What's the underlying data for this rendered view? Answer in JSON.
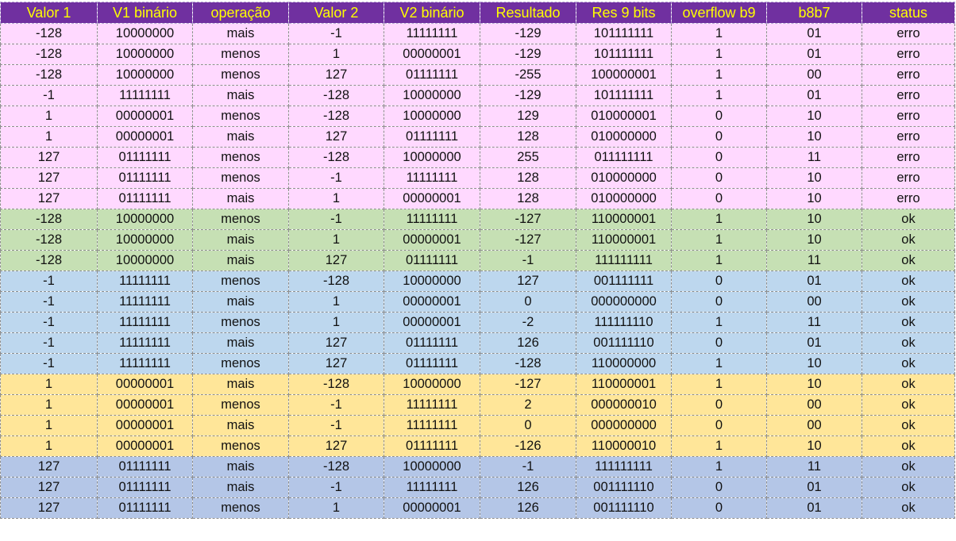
{
  "colors": {
    "header_bg": "#7030A0",
    "header_text": "#FFFF00",
    "group_error_pink": "#FFD9FF",
    "group_ok_minus128_green": "#C6E0B4",
    "group_ok_minus1_blue": "#BDD7EE",
    "group_ok_1_yellow": "#FFE699",
    "group_ok_127_periwinkle": "#B4C6E7"
  },
  "table": {
    "columns": [
      "Valor 1",
      "V1 binário",
      "operação",
      "Valor 2",
      "V2 binário",
      "Resultado",
      "Res 9 bits",
      "overflow b9",
      "b8b7",
      "status"
    ],
    "rows": [
      {
        "group": "pink",
        "cells": [
          "-128",
          "10000000",
          "mais",
          "-1",
          "11111111",
          "-129",
          "101111111",
          "1",
          "01",
          "erro"
        ]
      },
      {
        "group": "pink",
        "cells": [
          "-128",
          "10000000",
          "menos",
          "1",
          "00000001",
          "-129",
          "101111111",
          "1",
          "01",
          "erro"
        ]
      },
      {
        "group": "pink",
        "cells": [
          "-128",
          "10000000",
          "menos",
          "127",
          "01111111",
          "-255",
          "100000001",
          "1",
          "00",
          "erro"
        ]
      },
      {
        "group": "pink",
        "cells": [
          "-1",
          "11111111",
          "mais",
          "-128",
          "10000000",
          "-129",
          "101111111",
          "1",
          "01",
          "erro"
        ]
      },
      {
        "group": "pink",
        "cells": [
          "1",
          "00000001",
          "menos",
          "-128",
          "10000000",
          "129",
          "010000001",
          "0",
          "10",
          "erro"
        ]
      },
      {
        "group": "pink",
        "cells": [
          "1",
          "00000001",
          "mais",
          "127",
          "01111111",
          "128",
          "010000000",
          "0",
          "10",
          "erro"
        ]
      },
      {
        "group": "pink",
        "cells": [
          "127",
          "01111111",
          "menos",
          "-128",
          "10000000",
          "255",
          "011111111",
          "0",
          "11",
          "erro"
        ]
      },
      {
        "group": "pink",
        "cells": [
          "127",
          "01111111",
          "menos",
          "-1",
          "11111111",
          "128",
          "010000000",
          "0",
          "10",
          "erro"
        ]
      },
      {
        "group": "pink",
        "cells": [
          "127",
          "01111111",
          "mais",
          "1",
          "00000001",
          "128",
          "010000000",
          "0",
          "10",
          "erro"
        ]
      },
      {
        "group": "green",
        "cells": [
          "-128",
          "10000000",
          "menos",
          "-1",
          "11111111",
          "-127",
          "110000001",
          "1",
          "10",
          "ok"
        ]
      },
      {
        "group": "green",
        "cells": [
          "-128",
          "10000000",
          "mais",
          "1",
          "00000001",
          "-127",
          "110000001",
          "1",
          "10",
          "ok"
        ]
      },
      {
        "group": "green",
        "cells": [
          "-128",
          "10000000",
          "mais",
          "127",
          "01111111",
          "-1",
          "111111111",
          "1",
          "11",
          "ok"
        ]
      },
      {
        "group": "blue",
        "cells": [
          "-1",
          "11111111",
          "menos",
          "-128",
          "10000000",
          "127",
          "001111111",
          "0",
          "01",
          "ok"
        ]
      },
      {
        "group": "blue",
        "cells": [
          "-1",
          "11111111",
          "mais",
          "1",
          "00000001",
          "0",
          "000000000",
          "0",
          "00",
          "ok"
        ]
      },
      {
        "group": "blue",
        "cells": [
          "-1",
          "11111111",
          "menos",
          "1",
          "00000001",
          "-2",
          "111111110",
          "1",
          "11",
          "ok"
        ]
      },
      {
        "group": "blue",
        "cells": [
          "-1",
          "11111111",
          "mais",
          "127",
          "01111111",
          "126",
          "001111110",
          "0",
          "01",
          "ok"
        ]
      },
      {
        "group": "blue",
        "cells": [
          "-1",
          "11111111",
          "menos",
          "127",
          "01111111",
          "-128",
          "110000000",
          "1",
          "10",
          "ok"
        ]
      },
      {
        "group": "yellow",
        "cells": [
          "1",
          "00000001",
          "mais",
          "-128",
          "10000000",
          "-127",
          "110000001",
          "1",
          "10",
          "ok"
        ]
      },
      {
        "group": "yellow",
        "cells": [
          "1",
          "00000001",
          "menos",
          "-1",
          "11111111",
          "2",
          "000000010",
          "0",
          "00",
          "ok"
        ]
      },
      {
        "group": "yellow",
        "cells": [
          "1",
          "00000001",
          "mais",
          "-1",
          "11111111",
          "0",
          "000000000",
          "0",
          "00",
          "ok"
        ]
      },
      {
        "group": "yellow",
        "cells": [
          "1",
          "00000001",
          "menos",
          "127",
          "01111111",
          "-126",
          "110000010",
          "1",
          "10",
          "ok"
        ]
      },
      {
        "group": "periwinkle",
        "cells": [
          "127",
          "01111111",
          "mais",
          "-128",
          "10000000",
          "-1",
          "111111111",
          "1",
          "11",
          "ok"
        ]
      },
      {
        "group": "periwinkle",
        "cells": [
          "127",
          "01111111",
          "mais",
          "-1",
          "11111111",
          "126",
          "001111110",
          "0",
          "01",
          "ok"
        ]
      },
      {
        "group": "periwinkle",
        "cells": [
          "127",
          "01111111",
          "menos",
          "1",
          "00000001",
          "126",
          "001111110",
          "0",
          "01",
          "ok"
        ]
      }
    ]
  }
}
